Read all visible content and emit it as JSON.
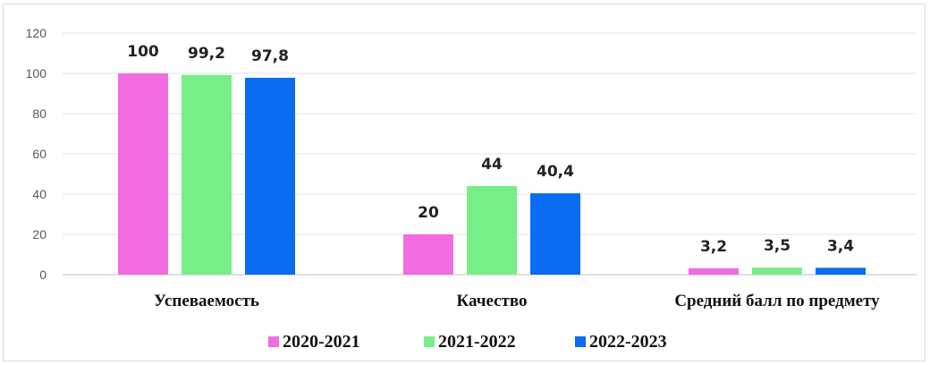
{
  "chart_data": {
    "type": "bar",
    "title": "",
    "xlabel": "",
    "ylabel": "",
    "categories": [
      "Успеваемость",
      "Качество",
      "Средний балл по предмету"
    ],
    "series": [
      {
        "name": "2020-2021",
        "color": "#f06ce0",
        "values": [
          100,
          20,
          3.2
        ]
      },
      {
        "name": "2021-2022",
        "color": "#77ee88",
        "values": [
          99.2,
          44,
          3.5
        ]
      },
      {
        "name": "2022-2023",
        "color": "#0a6cf0",
        "values": [
          97.8,
          40.4,
          3.4
        ]
      }
    ],
    "data_labels": [
      [
        "100",
        "20",
        "3,2"
      ],
      [
        "99,2",
        "44",
        "3,5"
      ],
      [
        "97,8",
        "40,4",
        "3,4"
      ]
    ],
    "ylim": [
      0,
      120
    ],
    "yticks": [
      0,
      20,
      40,
      60,
      80,
      100,
      120
    ],
    "grid": true,
    "legend_position": "bottom"
  }
}
